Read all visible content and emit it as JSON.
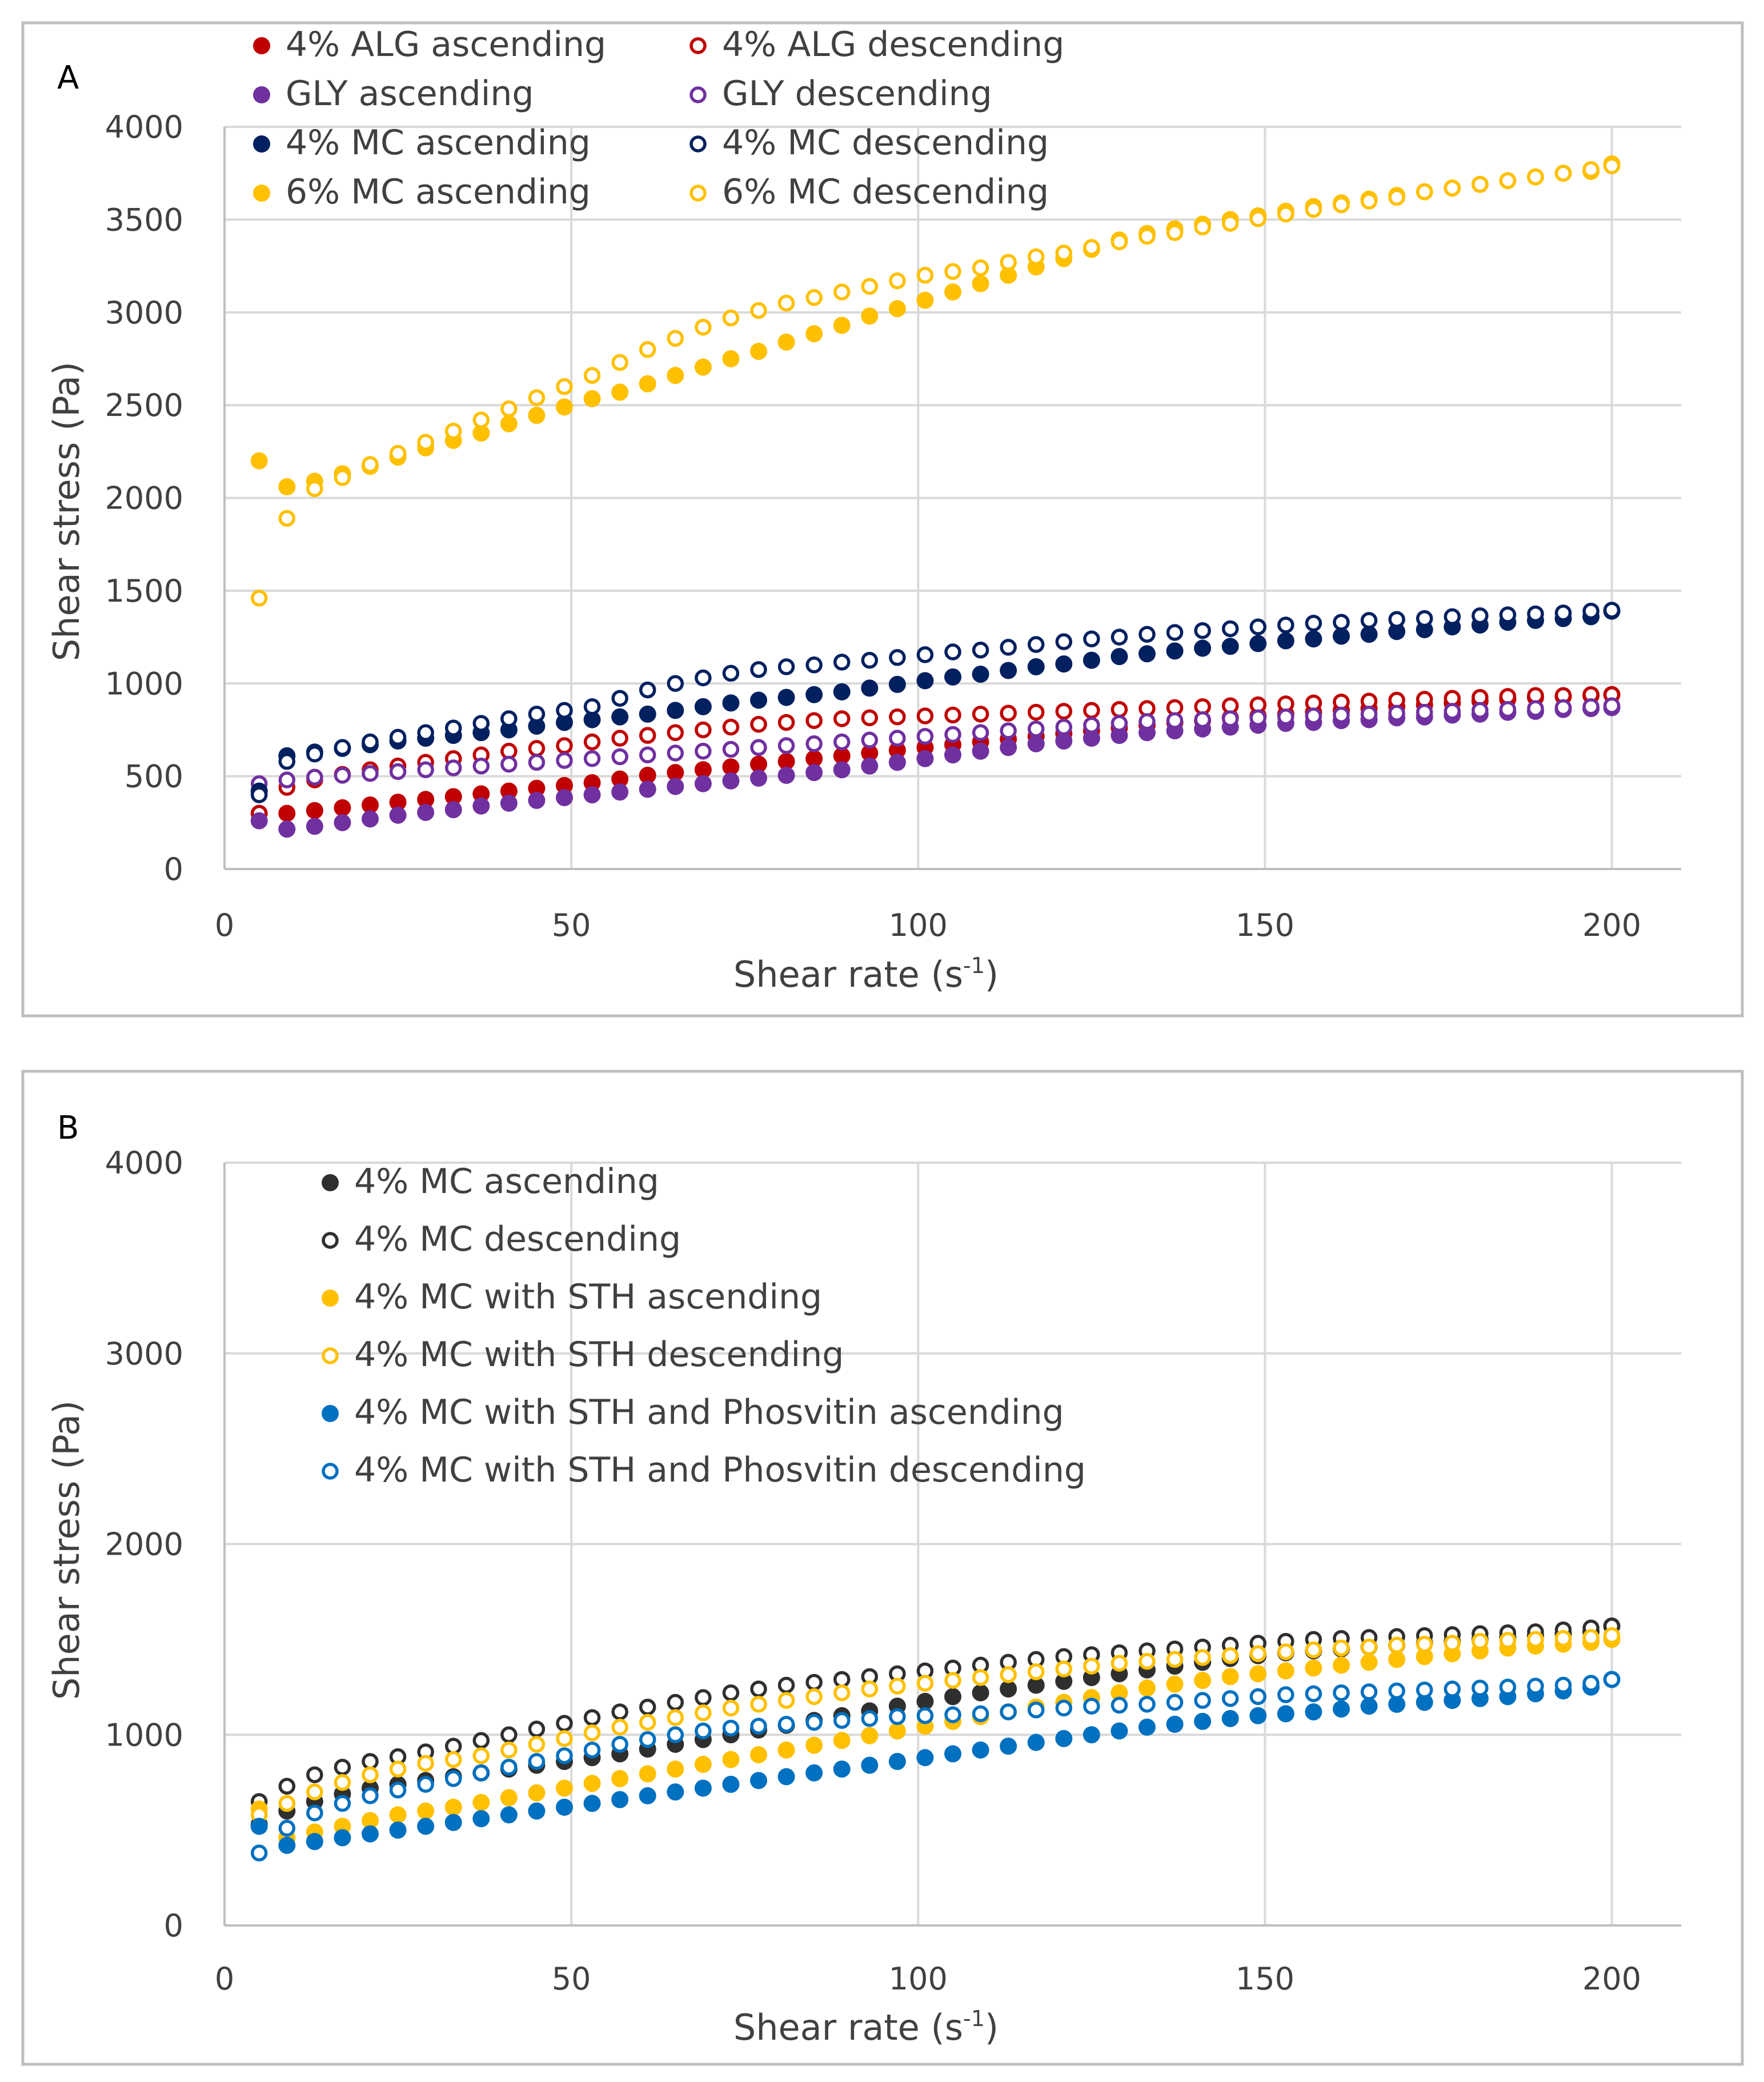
{
  "colors": {
    "alg": "#c00000",
    "gly": "#7030a0",
    "mc4": "#002060",
    "mc6": "#ffc000",
    "mc4_b": "#2f2f2f",
    "sth": "#ffc000",
    "phos": "#0070c0",
    "text": "#404040",
    "grid": "#d9d9d9",
    "frame": "#bfbfbf",
    "axis": "#bfbfbf"
  },
  "chart_data": [
    {
      "panel_label": "A",
      "type": "scatter",
      "title": "",
      "xlabel": "Shear rate (s",
      "xlabel_sup": "-1",
      "xlabel_close": ")",
      "ylabel": "Shear stress (Pa)",
      "xlim": [
        0,
        210
      ],
      "ylim": [
        0,
        4000
      ],
      "xticks": [
        0,
        50,
        100,
        150,
        200
      ],
      "yticks": [
        0,
        500,
        1000,
        1500,
        2000,
        2500,
        3000,
        3500,
        4000
      ],
      "grid": true,
      "legend_position": "top, two columns",
      "x": [
        5,
        9,
        13,
        17,
        21,
        25,
        29,
        33,
        37,
        41,
        45,
        49,
        53,
        57,
        61,
        65,
        69,
        73,
        77,
        81,
        85,
        89,
        93,
        97,
        101,
        105,
        109,
        113,
        117,
        121,
        125,
        129,
        133,
        137,
        141,
        145,
        149,
        153,
        157,
        161,
        165,
        169,
        173,
        177,
        181,
        185,
        189,
        193,
        197,
        200
      ],
      "series": [
        {
          "name": "4% ALG ascending",
          "color_key": "alg",
          "filled": true,
          "values": [
            300,
            300,
            315,
            330,
            345,
            360,
            375,
            390,
            405,
            420,
            435,
            450,
            465,
            485,
            505,
            520,
            535,
            550,
            565,
            580,
            595,
            610,
            625,
            640,
            655,
            670,
            685,
            700,
            715,
            730,
            745,
            760,
            775,
            790,
            800,
            815,
            825,
            835,
            845,
            855,
            865,
            875,
            885,
            895,
            905,
            915,
            925,
            930,
            935,
            940
          ]
        },
        {
          "name": "4% ALG descending",
          "color_key": "alg",
          "filled": false,
          "values": [
            300,
            440,
            480,
            510,
            535,
            555,
            575,
            595,
            615,
            635,
            650,
            665,
            685,
            705,
            720,
            735,
            750,
            765,
            780,
            790,
            800,
            810,
            815,
            820,
            825,
            830,
            835,
            840,
            845,
            850,
            855,
            860,
            865,
            870,
            875,
            880,
            885,
            890,
            895,
            900,
            905,
            910,
            915,
            920,
            925,
            930,
            935,
            935,
            940,
            940
          ]
        },
        {
          "name": "GLY ascending",
          "color_key": "gly",
          "filled": true,
          "values": [
            260,
            215,
            230,
            250,
            270,
            290,
            305,
            320,
            340,
            355,
            370,
            385,
            400,
            415,
            430,
            445,
            460,
            475,
            490,
            505,
            520,
            535,
            555,
            575,
            595,
            615,
            635,
            655,
            675,
            690,
            705,
            720,
            735,
            745,
            755,
            765,
            775,
            785,
            790,
            800,
            805,
            815,
            820,
            830,
            835,
            845,
            850,
            860,
            865,
            870
          ]
        },
        {
          "name": "GLY descending",
          "color_key": "gly",
          "filled": false,
          "values": [
            460,
            480,
            495,
            505,
            515,
            525,
            535,
            545,
            555,
            565,
            575,
            585,
            595,
            605,
            615,
            625,
            635,
            645,
            655,
            665,
            675,
            685,
            695,
            705,
            715,
            725,
            735,
            745,
            755,
            765,
            775,
            785,
            795,
            800,
            805,
            810,
            815,
            820,
            825,
            830,
            835,
            840,
            845,
            850,
            855,
            860,
            865,
            870,
            875,
            880
          ]
        },
        {
          "name": "4% MC ascending",
          "color_key": "mc4",
          "filled": true,
          "values": [
            420,
            610,
            630,
            650,
            670,
            690,
            705,
            720,
            735,
            750,
            770,
            790,
            805,
            820,
            835,
            855,
            875,
            895,
            910,
            925,
            940,
            955,
            975,
            995,
            1015,
            1035,
            1050,
            1070,
            1090,
            1105,
            1125,
            1145,
            1160,
            1175,
            1190,
            1200,
            1215,
            1230,
            1240,
            1255,
            1265,
            1280,
            1290,
            1305,
            1315,
            1330,
            1340,
            1350,
            1360,
            1390
          ]
        },
        {
          "name": "4% MC descending",
          "color_key": "mc4",
          "filled": false,
          "values": [
            400,
            580,
            620,
            655,
            685,
            710,
            735,
            760,
            785,
            810,
            835,
            855,
            875,
            920,
            965,
            1000,
            1030,
            1055,
            1075,
            1090,
            1100,
            1115,
            1125,
            1140,
            1155,
            1170,
            1180,
            1195,
            1210,
            1225,
            1240,
            1250,
            1265,
            1275,
            1285,
            1295,
            1305,
            1315,
            1325,
            1330,
            1340,
            1345,
            1350,
            1360,
            1365,
            1370,
            1375,
            1380,
            1390,
            1395
          ]
        },
        {
          "name": "6% MC ascending",
          "color_key": "mc6",
          "filled": true,
          "values": [
            2200,
            2060,
            2090,
            2130,
            2170,
            2220,
            2270,
            2310,
            2350,
            2400,
            2445,
            2490,
            2535,
            2570,
            2615,
            2660,
            2705,
            2750,
            2790,
            2840,
            2885,
            2930,
            2980,
            3020,
            3065,
            3110,
            3155,
            3200,
            3245,
            3290,
            3340,
            3390,
            3425,
            3450,
            3475,
            3500,
            3520,
            3545,
            3570,
            3590,
            3610,
            3630,
            3650,
            3670,
            3690,
            3710,
            3730,
            3750,
            3760,
            3800
          ]
        },
        {
          "name": "6% MC descending",
          "color_key": "mc6",
          "filled": false,
          "values": [
            1460,
            1890,
            2050,
            2110,
            2180,
            2240,
            2300,
            2360,
            2420,
            2480,
            2540,
            2600,
            2660,
            2730,
            2800,
            2860,
            2920,
            2970,
            3010,
            3050,
            3080,
            3110,
            3140,
            3170,
            3200,
            3220,
            3240,
            3270,
            3300,
            3320,
            3350,
            3380,
            3410,
            3430,
            3460,
            3480,
            3505,
            3530,
            3555,
            3580,
            3600,
            3620,
            3650,
            3670,
            3690,
            3710,
            3730,
            3750,
            3770,
            3790
          ]
        }
      ]
    },
    {
      "panel_label": "B",
      "type": "scatter",
      "title": "",
      "xlabel": "Shear rate (s",
      "xlabel_sup": "-1",
      "xlabel_close": ")",
      "ylabel": "Shear stress (Pa)",
      "xlim": [
        0,
        210
      ],
      "ylim": [
        0,
        4000
      ],
      "xticks": [
        0,
        50,
        100,
        150,
        200
      ],
      "yticks": [
        0,
        1000,
        2000,
        3000,
        4000
      ],
      "grid": true,
      "legend_position": "top-left, single column",
      "x": [
        5,
        9,
        13,
        17,
        21,
        25,
        29,
        33,
        37,
        41,
        45,
        49,
        53,
        57,
        61,
        65,
        69,
        73,
        77,
        81,
        85,
        89,
        93,
        97,
        101,
        105,
        109,
        113,
        117,
        121,
        125,
        129,
        133,
        137,
        141,
        145,
        149,
        153,
        157,
        161,
        165,
        169,
        173,
        177,
        181,
        185,
        189,
        193,
        197,
        200
      ],
      "series": [
        {
          "name": "4% MC ascending",
          "color_key": "mc4_b",
          "filled": true,
          "values": [
            530,
            600,
            650,
            690,
            720,
            740,
            760,
            780,
            800,
            820,
            840,
            860,
            880,
            900,
            925,
            950,
            975,
            1000,
            1025,
            1050,
            1075,
            1100,
            1125,
            1150,
            1175,
            1200,
            1220,
            1240,
            1260,
            1280,
            1300,
            1320,
            1340,
            1360,
            1380,
            1400,
            1415,
            1430,
            1440,
            1450,
            1460,
            1470,
            1480,
            1490,
            1500,
            1510,
            1520,
            1530,
            1540,
            1570
          ]
        },
        {
          "name": "4% MC descending",
          "color_key": "mc4_b",
          "filled": false,
          "values": [
            650,
            730,
            790,
            830,
            860,
            885,
            910,
            940,
            970,
            1000,
            1030,
            1060,
            1090,
            1120,
            1145,
            1170,
            1195,
            1220,
            1240,
            1260,
            1275,
            1290,
            1305,
            1320,
            1335,
            1350,
            1365,
            1380,
            1395,
            1410,
            1420,
            1430,
            1440,
            1450,
            1460,
            1470,
            1480,
            1490,
            1500,
            1505,
            1510,
            1515,
            1520,
            1525,
            1530,
            1535,
            1540,
            1550,
            1560,
            1570
          ]
        },
        {
          "name": "4% MC with STH ascending",
          "color_key": "sth",
          "filled": true,
          "values": [
            610,
            460,
            490,
            520,
            550,
            580,
            600,
            620,
            645,
            670,
            695,
            720,
            745,
            770,
            795,
            820,
            845,
            870,
            895,
            920,
            945,
            970,
            995,
            1020,
            1045,
            1070,
            1095,
            1120,
            1145,
            1170,
            1195,
            1220,
            1245,
            1265,
            1285,
            1305,
            1320,
            1335,
            1350,
            1365,
            1380,
            1395,
            1410,
            1425,
            1440,
            1455,
            1465,
            1475,
            1485,
            1500
          ]
        },
        {
          "name": "4% MC with STH descending",
          "color_key": "sth",
          "filled": false,
          "values": [
            580,
            640,
            700,
            750,
            790,
            820,
            850,
            870,
            890,
            920,
            950,
            980,
            1010,
            1040,
            1065,
            1090,
            1115,
            1140,
            1160,
            1180,
            1200,
            1220,
            1240,
            1255,
            1270,
            1285,
            1300,
            1315,
            1330,
            1345,
            1360,
            1375,
            1385,
            1395,
            1405,
            1415,
            1425,
            1435,
            1445,
            1455,
            1460,
            1470,
            1475,
            1480,
            1490,
            1495,
            1500,
            1505,
            1510,
            1520
          ]
        },
        {
          "name": "4% MC with STH and Phosvitin ascending",
          "color_key": "phos",
          "filled": true,
          "values": [
            520,
            420,
            440,
            460,
            480,
            500,
            520,
            540,
            560,
            580,
            600,
            620,
            640,
            660,
            680,
            700,
            720,
            740,
            760,
            780,
            800,
            820,
            840,
            860,
            880,
            900,
            920,
            940,
            960,
            980,
            1000,
            1020,
            1040,
            1055,
            1070,
            1085,
            1100,
            1110,
            1120,
            1135,
            1150,
            1160,
            1170,
            1180,
            1190,
            1200,
            1215,
            1230,
            1250,
            1290
          ]
        },
        {
          "name": "4% MC with STH and Phosvitin descending",
          "color_key": "phos",
          "filled": false,
          "values": [
            380,
            510,
            590,
            640,
            680,
            710,
            740,
            770,
            800,
            830,
            860,
            890,
            920,
            950,
            975,
            1000,
            1020,
            1035,
            1045,
            1055,
            1065,
            1075,
            1085,
            1095,
            1100,
            1105,
            1110,
            1120,
            1130,
            1140,
            1150,
            1155,
            1160,
            1170,
            1180,
            1190,
            1200,
            1210,
            1215,
            1220,
            1225,
            1230,
            1235,
            1240,
            1245,
            1250,
            1255,
            1260,
            1270,
            1290
          ]
        }
      ]
    }
  ]
}
